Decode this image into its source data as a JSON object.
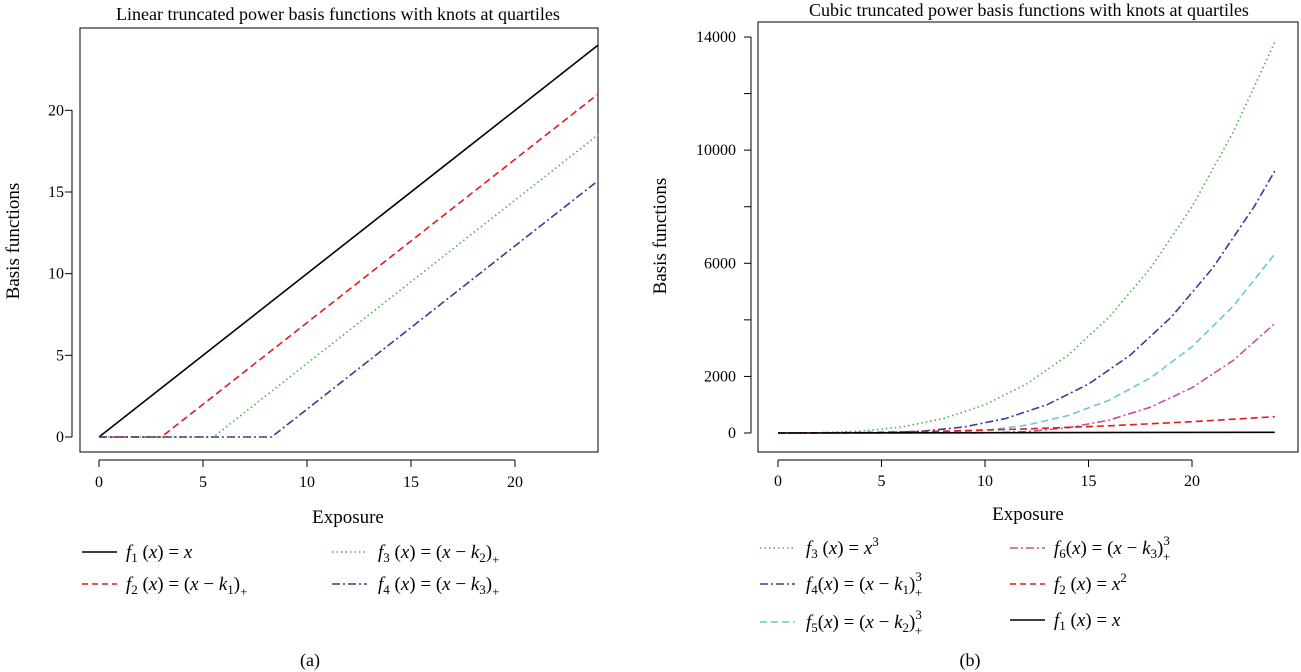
{
  "chart_data": [
    {
      "type": "line",
      "panel_label": "(a)",
      "title": "Linear truncated power basis functions with knots at quartiles",
      "xlabel": "Exposure",
      "ylabel": "Basis functions",
      "xlim": [
        0,
        24
      ],
      "ylim": [
        0,
        24
      ],
      "xticks": [
        "0",
        "5",
        "10",
        "15",
        "20"
      ],
      "yticks": [
        "0",
        "5",
        "10",
        "15",
        "20"
      ],
      "grid": false,
      "legend_placement": "below",
      "series": [
        {
          "name": "f1 (x) = x",
          "color": "#000000",
          "style": "solid",
          "x": [
            0,
            24
          ],
          "y": [
            0,
            24
          ]
        },
        {
          "name": "f2 (x) = (x − k1)+",
          "color": "#e41a1c",
          "style": "dashed",
          "x": [
            0,
            3,
            24
          ],
          "y": [
            0,
            0,
            21
          ]
        },
        {
          "name": "f3 (x) = (x − k2)+",
          "color": "#4daf4a",
          "style": "dotted",
          "x": [
            0,
            5.5,
            24
          ],
          "y": [
            0,
            0,
            18.5
          ]
        },
        {
          "name": "f4 (x) = (x − k3)+",
          "color": "#3a3a9a",
          "style": "dashdot",
          "x": [
            0,
            8.3,
            24
          ],
          "y": [
            0,
            0,
            15.7
          ]
        }
      ]
    },
    {
      "type": "line",
      "panel_label": "(b)",
      "title": "Cubic truncated power basis functions with knots at quartiles",
      "xlabel": "Exposure",
      "ylabel": "Basis functions",
      "xlim": [
        0,
        24
      ],
      "ylim": [
        0,
        14000
      ],
      "xticks": [
        "0",
        "5",
        "10",
        "15",
        "20"
      ],
      "yticks": [
        "0",
        "2000",
        "6000",
        "10000",
        "14000"
      ],
      "grid": false,
      "legend_placement": "below",
      "series": [
        {
          "name": "f3 (x) = x^3",
          "color": "#4daf4a",
          "style": "dotted",
          "x": [
            0,
            2,
            4,
            6,
            8,
            10,
            12,
            14,
            16,
            18,
            20,
            22,
            24
          ],
          "y": [
            0,
            8,
            64,
            216,
            512,
            1000,
            1728,
            2744,
            4096,
            5832,
            8000,
            10648,
            13824
          ]
        },
        {
          "name": "f4(x) = (x − k1)^3+",
          "color": "#3a3a9a",
          "style": "dashdot",
          "x": [
            0,
            3,
            5,
            7,
            9,
            11,
            13,
            15,
            17,
            19,
            21,
            23,
            24
          ],
          "y": [
            0,
            0,
            8,
            64,
            216,
            512,
            1000,
            1728,
            2744,
            4096,
            5832,
            8000,
            9261
          ]
        },
        {
          "name": "f5(x) = (x − k2)^3+",
          "color": "#6cc5dc",
          "style": "dashed",
          "x": [
            0,
            5.5,
            8,
            10,
            12,
            14,
            16,
            18,
            20,
            22,
            24
          ],
          "y": [
            0,
            0,
            16,
            91,
            275,
            614,
            1158,
            1953,
            3049,
            4492,
            6332
          ]
        },
        {
          "name": "f6(x) = (x − k3)^3+",
          "color": "#c44fa8",
          "style": "dashdot",
          "x": [
            0,
            8.3,
            10,
            12,
            14,
            16,
            18,
            20,
            22,
            24
          ],
          "y": [
            0,
            0,
            5,
            51,
            185,
            457,
            913,
            1602,
            2571,
            3870
          ]
        },
        {
          "name": "f2 (x) = x^2",
          "color": "#e41a1c",
          "style": "dashed",
          "x": [
            0,
            4,
            8,
            12,
            16,
            20,
            24
          ],
          "y": [
            0,
            16,
            64,
            144,
            256,
            400,
            576
          ]
        },
        {
          "name": "f1 (x) = x",
          "color": "#000000",
          "style": "solid",
          "x": [
            0,
            24
          ],
          "y": [
            0,
            24
          ]
        }
      ]
    }
  ]
}
